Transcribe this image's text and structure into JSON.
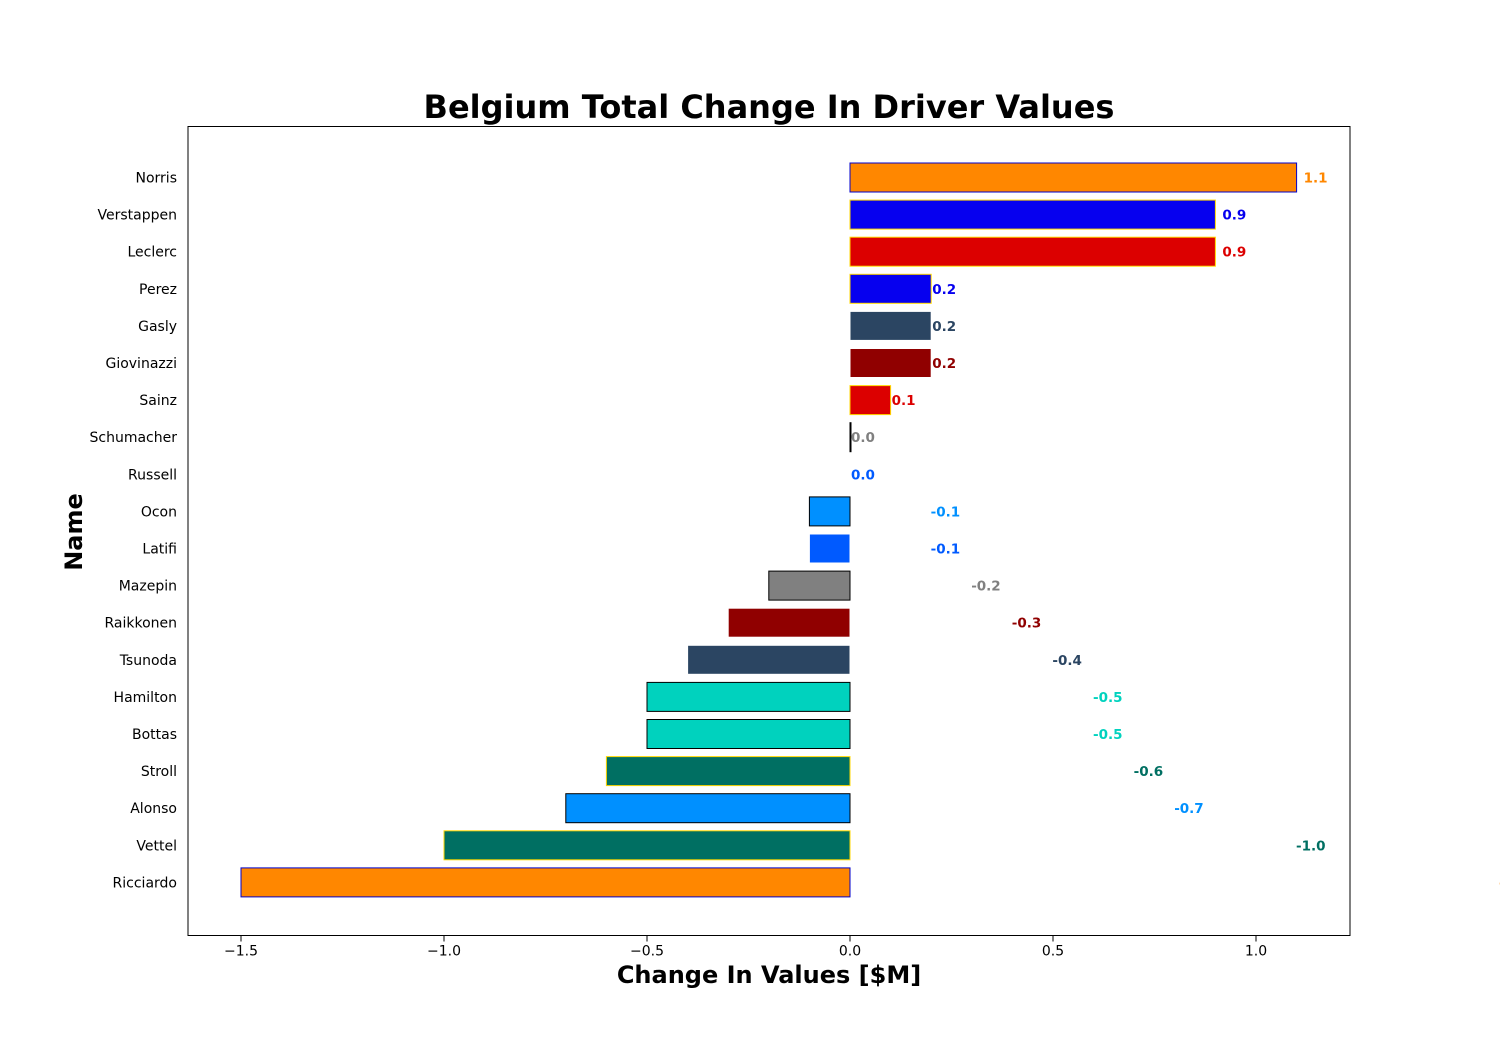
{
  "chart_data": {
    "type": "bar",
    "orientation": "horizontal",
    "title": "Belgium Total Change In Driver Values",
    "xlabel": "Change In Values [$M]",
    "ylabel": "Name",
    "xlim": [
      -1.63,
      1.23
    ],
    "xticks": [
      -1.5,
      -1.0,
      -0.5,
      0.0,
      0.5,
      1.0
    ],
    "xtick_labels": [
      "−1.5",
      "−1.0",
      "−0.5",
      "0.0",
      "0.5",
      "1.0"
    ],
    "grid": false,
    "legend": "none",
    "bars": [
      {
        "name": "Norris",
        "value": 1.1,
        "label": "1.1",
        "color": "#FF8700",
        "edge": "#0000CC"
      },
      {
        "name": "Verstappen",
        "value": 0.9,
        "label": "0.9",
        "color": "#0600EF",
        "edge": "#FFD700"
      },
      {
        "name": "Leclerc",
        "value": 0.9,
        "label": "0.9",
        "color": "#DC0000",
        "edge": "#FFD700"
      },
      {
        "name": "Perez",
        "value": 0.2,
        "label": "0.2",
        "color": "#0600EF",
        "edge": "#FFD700"
      },
      {
        "name": "Gasly",
        "value": 0.2,
        "label": "0.2",
        "color": "#2B4562",
        "edge": "#FFFFFF"
      },
      {
        "name": "Giovinazzi",
        "value": 0.2,
        "label": "0.2",
        "color": "#900000",
        "edge": "#FFFFFF"
      },
      {
        "name": "Sainz",
        "value": 0.1,
        "label": "0.1",
        "color": "#DC0000",
        "edge": "#FFD700"
      },
      {
        "name": "Schumacher",
        "value": 0.0,
        "label": "0.0",
        "color": "#808080",
        "edge": "#000000"
      },
      {
        "name": "Russell",
        "value": 0.0,
        "label": "0.0",
        "color": "#005AFF",
        "edge": "#FFFFFF"
      },
      {
        "name": "Ocon",
        "value": -0.1,
        "label": "-0.1",
        "color": "#0090FF",
        "edge": "#000000"
      },
      {
        "name": "Latifi",
        "value": -0.1,
        "label": "-0.1",
        "color": "#005AFF",
        "edge": "#FFFFFF"
      },
      {
        "name": "Mazepin",
        "value": -0.2,
        "label": "-0.2",
        "color": "#808080",
        "edge": "#000000"
      },
      {
        "name": "Raikkonen",
        "value": -0.3,
        "label": "-0.3",
        "color": "#900000",
        "edge": "#FFFFFF"
      },
      {
        "name": "Tsunoda",
        "value": -0.4,
        "label": "-0.4",
        "color": "#2B4562",
        "edge": "#FFFFFF"
      },
      {
        "name": "Hamilton",
        "value": -0.5,
        "label": "-0.5",
        "color": "#00D2BE",
        "edge": "#000000"
      },
      {
        "name": "Bottas",
        "value": -0.5,
        "label": "-0.5",
        "color": "#00D2BE",
        "edge": "#000000"
      },
      {
        "name": "Stroll",
        "value": -0.6,
        "label": "-0.6",
        "color": "#006F62",
        "edge": "#FFD700"
      },
      {
        "name": "Alonso",
        "value": -0.7,
        "label": "-0.7",
        "color": "#0090FF",
        "edge": "#000000"
      },
      {
        "name": "Vettel",
        "value": -1.0,
        "label": "-1.0",
        "color": "#006F62",
        "edge": "#FFD700"
      },
      {
        "name": "Ricciardo",
        "value": -1.5,
        "label": "-1.5",
        "color": "#FF8700",
        "edge": "#0000CC"
      }
    ]
  }
}
